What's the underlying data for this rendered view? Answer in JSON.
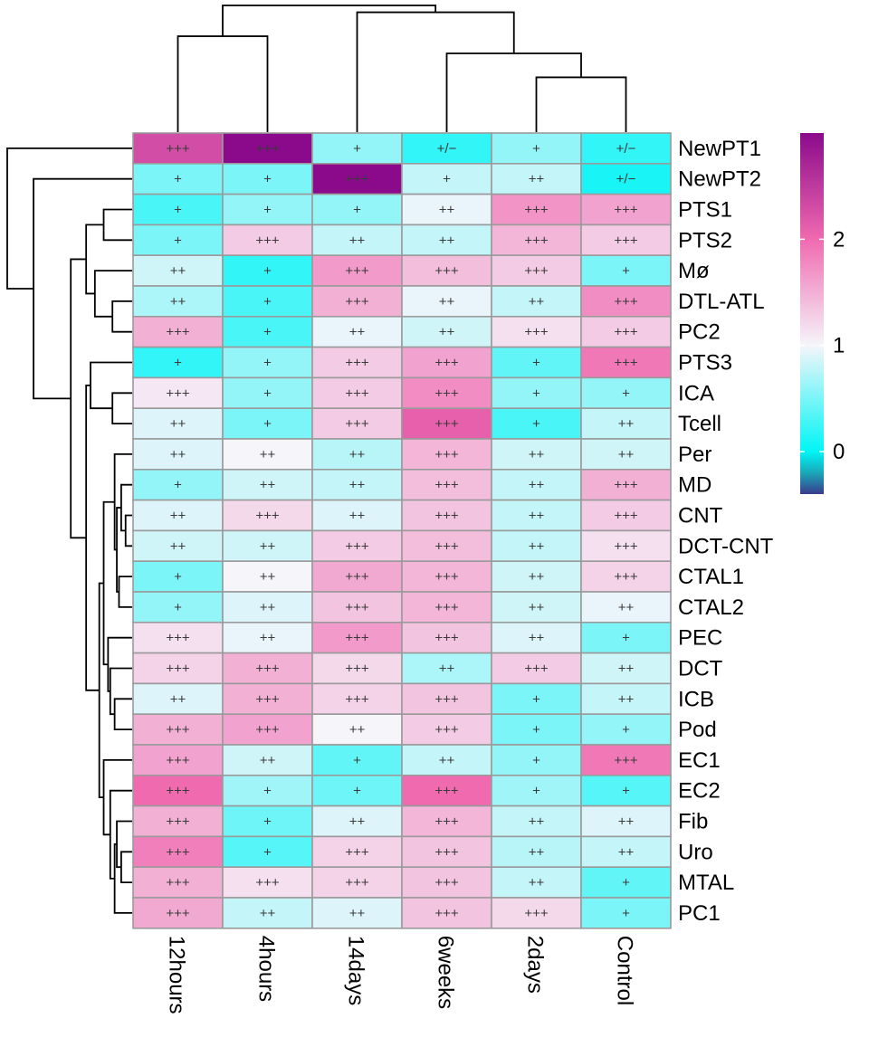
{
  "chart_data": {
    "type": "heatmap",
    "title": "",
    "columns": [
      "12hours",
      "4hours",
      "14days",
      "6weeks",
      "2days",
      "Control"
    ],
    "rows": [
      "NewPT1",
      "NewPT2",
      "PTS1",
      "PTS2",
      "Mø",
      "DTL-ATL",
      "PC2",
      "PTS3",
      "ICA",
      "Tcell",
      "Per",
      "MD",
      "CNT",
      "DCT-CNT",
      "CTAL1",
      "CTAL2",
      "PEC",
      "DCT",
      "ICB",
      "Pod",
      "EC1",
      "EC2",
      "Fib",
      "Uro",
      "MTAL",
      "PC1"
    ],
    "values": [
      [
        2.3,
        3.0,
        0.6,
        0.2,
        0.6,
        0.2
      ],
      [
        0.5,
        0.5,
        3.0,
        0.8,
        0.8,
        0.1
      ],
      [
        0.3,
        0.6,
        0.6,
        0.95,
        1.7,
        1.6
      ],
      [
        0.5,
        1.3,
        0.8,
        0.8,
        1.45,
        1.3
      ],
      [
        0.85,
        0.2,
        1.65,
        1.4,
        1.3,
        0.5
      ],
      [
        0.7,
        0.3,
        1.5,
        0.95,
        0.8,
        1.75
      ],
      [
        1.5,
        0.3,
        0.95,
        0.85,
        1.15,
        1.3
      ],
      [
        0.2,
        0.6,
        1.3,
        1.6,
        0.4,
        1.9
      ],
      [
        1.1,
        0.6,
        1.3,
        1.75,
        0.6,
        0.6
      ],
      [
        0.9,
        0.5,
        1.3,
        2.1,
        0.3,
        0.8
      ],
      [
        0.9,
        1.0,
        0.75,
        1.45,
        0.85,
        0.85
      ],
      [
        0.6,
        0.85,
        0.8,
        1.4,
        0.8,
        1.5
      ],
      [
        0.9,
        1.2,
        0.9,
        1.35,
        0.8,
        1.3
      ],
      [
        0.85,
        0.85,
        1.3,
        1.4,
        0.8,
        1.15
      ],
      [
        0.5,
        1.0,
        1.55,
        1.45,
        0.85,
        1.25
      ],
      [
        0.6,
        0.9,
        1.35,
        1.45,
        0.85,
        0.95
      ],
      [
        1.15,
        0.95,
        1.65,
        1.35,
        0.9,
        0.5
      ],
      [
        1.25,
        1.5,
        1.2,
        0.7,
        1.3,
        0.85
      ],
      [
        0.9,
        1.5,
        1.25,
        1.35,
        0.5,
        0.8
      ],
      [
        1.5,
        1.6,
        1.0,
        1.3,
        0.5,
        0.6
      ],
      [
        1.6,
        0.85,
        0.4,
        0.8,
        0.6,
        1.9
      ],
      [
        2.0,
        0.65,
        0.45,
        2.0,
        0.65,
        0.35
      ],
      [
        1.5,
        0.45,
        0.9,
        1.45,
        0.8,
        0.9
      ],
      [
        1.85,
        0.35,
        1.25,
        1.35,
        0.75,
        0.8
      ],
      [
        1.5,
        1.15,
        1.25,
        1.35,
        0.8,
        0.4
      ],
      [
        1.55,
        0.8,
        0.9,
        1.35,
        1.2,
        0.5
      ]
    ],
    "cell_labels": [
      [
        "+++",
        "+++",
        "+",
        "+/−",
        "+",
        "+/−"
      ],
      [
        "+",
        "+",
        "+++",
        "+",
        "++",
        "+/−"
      ],
      [
        "+",
        "+",
        "+",
        "++",
        "+++",
        "+++"
      ],
      [
        "+",
        "+++",
        "++",
        "++",
        "+++",
        "+++"
      ],
      [
        "++",
        "+",
        "+++",
        "+++",
        "+++",
        "+"
      ],
      [
        "++",
        "+",
        "+++",
        "++",
        "++",
        "+++"
      ],
      [
        "+++",
        "+",
        "++",
        "++",
        "+++",
        "+++"
      ],
      [
        "+",
        "+",
        "+++",
        "+++",
        "+",
        "+++"
      ],
      [
        "+++",
        "+",
        "+++",
        "+++",
        "+",
        "+"
      ],
      [
        "++",
        "+",
        "+++",
        "+++",
        "+",
        "++"
      ],
      [
        "++",
        "++",
        "++",
        "+++",
        "++",
        "++"
      ],
      [
        "+",
        "++",
        "++",
        "+++",
        "++",
        "+++"
      ],
      [
        "++",
        "+++",
        "++",
        "+++",
        "++",
        "+++"
      ],
      [
        "++",
        "++",
        "+++",
        "+++",
        "++",
        "+++"
      ],
      [
        "+",
        "++",
        "+++",
        "+++",
        "++",
        "+++"
      ],
      [
        "+",
        "++",
        "+++",
        "+++",
        "++",
        "++"
      ],
      [
        "+++",
        "++",
        "+++",
        "+++",
        "++",
        "+"
      ],
      [
        "+++",
        "+++",
        "+++",
        "++",
        "+++",
        "++"
      ],
      [
        "++",
        "+++",
        "+++",
        "+++",
        "+",
        "++"
      ],
      [
        "+++",
        "+++",
        "++",
        "+++",
        "+",
        "+"
      ],
      [
        "+++",
        "++",
        "+",
        "++",
        "+",
        "+++"
      ],
      [
        "+++",
        "+",
        "+",
        "+++",
        "+",
        "+"
      ],
      [
        "+++",
        "+",
        "++",
        "+++",
        "++",
        "++"
      ],
      [
        "+++",
        "+",
        "+++",
        "+++",
        "++",
        "++"
      ],
      [
        "+++",
        "+++",
        "+++",
        "+++",
        "++",
        "+"
      ],
      [
        "+++",
        "++",
        "++",
        "+++",
        "+++",
        "+"
      ]
    ],
    "legend": {
      "position": "right",
      "range": [
        -0.4,
        3.0
      ],
      "ticks": [
        0,
        1,
        2
      ],
      "tick_labels": [
        "0",
        "1",
        "2"
      ],
      "colors": [
        "#3a3b8c",
        "#1aa7b8",
        "#00f5f5",
        "#f5f5fa",
        "#f06ab0",
        "#8b0a8b"
      ]
    },
    "col_dendrogram": {
      "merges": [
        [
          4,
          5,
          0.16
        ],
        [
          3,
          6,
          0.23
        ],
        [
          2,
          7,
          0.35
        ],
        [
          0,
          1,
          0.28
        ],
        [
          8,
          9,
          0.37
        ]
      ]
    },
    "row_dendrogram": {
      "merges": [
        [
          2,
          3,
          0.13
        ],
        [
          5,
          6,
          0.09
        ],
        [
          4,
          27,
          0.17
        ],
        [
          26,
          28,
          0.21
        ],
        [
          8,
          9,
          0.09
        ],
        [
          7,
          30,
          0.19
        ],
        [
          12,
          13,
          0.03
        ],
        [
          11,
          32,
          0.05
        ],
        [
          14,
          15,
          0.06
        ],
        [
          33,
          34,
          0.07
        ],
        [
          10,
          35,
          0.08
        ],
        [
          18,
          19,
          0.08
        ],
        [
          17,
          37,
          0.1
        ],
        [
          16,
          38,
          0.11
        ],
        [
          36,
          39,
          0.13
        ],
        [
          23,
          24,
          0.05
        ],
        [
          22,
          41,
          0.07
        ],
        [
          25,
          42,
          0.08
        ],
        [
          21,
          43,
          0.1
        ],
        [
          20,
          44,
          0.13
        ],
        [
          40,
          45,
          0.15
        ],
        [
          31,
          46,
          0.21
        ],
        [
          29,
          47,
          0.28
        ],
        [
          1,
          48,
          0.45
        ],
        [
          0,
          49,
          0.57
        ]
      ]
    }
  }
}
